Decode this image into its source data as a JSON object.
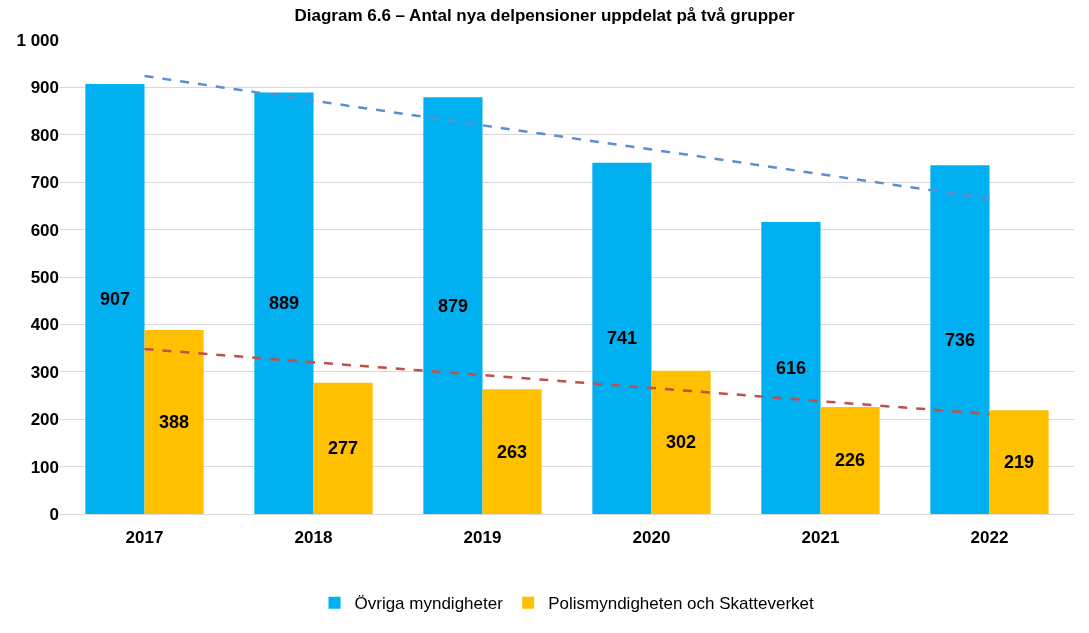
{
  "chart_data": {
    "type": "bar",
    "title": "Diagram 6.6 – Antal nya delpensioner uppdelat på två grupper",
    "categories": [
      "2017",
      "2018",
      "2019",
      "2020",
      "2021",
      "2022"
    ],
    "series": [
      {
        "name": "Övriga myndigheter",
        "color": "#00b0f0",
        "values": [
          907,
          889,
          879,
          741,
          616,
          736
        ],
        "value_labels": [
          "907",
          "889",
          "879",
          "741",
          "616",
          "736"
        ]
      },
      {
        "name": "Polismyndigheten och Skatteverket",
        "color": "#ffc000",
        "values": [
          388,
          277,
          263,
          302,
          226,
          219
        ],
        "value_labels": [
          "388",
          "277",
          "263",
          "302",
          "226",
          "219"
        ]
      },
      {
        "type": "line",
        "color": "#5b8fd0",
        "line_style": "dashed",
        "values": [
          924,
          872,
          820,
          769,
          717,
          665
        ]
      },
      {
        "type": "line",
        "color": "#c0504d",
        "line_style": "dashed",
        "values": [
          348,
          320,
          293,
          266,
          238,
          211
        ]
      }
    ],
    "ylim": [
      0,
      1000
    ],
    "yticks": [
      0,
      100,
      200,
      300,
      400,
      500,
      600,
      700,
      800,
      900,
      {
        "value": 1000,
        "label": "1 000"
      }
    ],
    "grid": "y",
    "legend": "bottom"
  }
}
